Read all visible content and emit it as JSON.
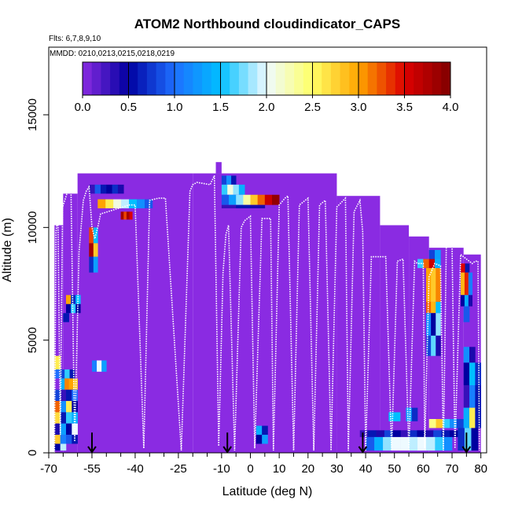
{
  "chart_data": {
    "type": "heatmap",
    "title": "ATOM2 Northbound cloudindicator_CAPS",
    "flights_label": "Flts: 6,7,8,9,10",
    "dates_label": "MMDD: 0210,0213,0215,0218,0219",
    "xlabel": "Latitude (deg N)",
    "ylabel": "Altitude (m)",
    "xlim": [
      -70,
      82
    ],
    "ylim": [
      0,
      18000
    ],
    "x_ticks": [
      -70,
      -55,
      -40,
      -25,
      -10,
      0,
      10,
      20,
      30,
      40,
      50,
      60,
      70,
      80
    ],
    "x_tick_labels": [
      "-70",
      "-55",
      "-40",
      "-25",
      "-10",
      "0",
      "10",
      "20",
      "30",
      "40",
      "50",
      "60",
      "70",
      "80"
    ],
    "x_minor_ticks": [
      -65,
      -60,
      -50,
      -45,
      -35,
      -30,
      -20,
      -15,
      -5,
      5,
      15,
      25,
      35,
      45,
      55,
      65,
      75
    ],
    "y_ticks": [
      0,
      5000,
      10000,
      15000
    ],
    "y_tick_labels": [
      "0",
      "5000",
      "10000",
      "15000"
    ],
    "colorbar": {
      "min": 0,
      "max": 4,
      "tick_values": [
        0,
        0.5,
        1,
        1.5,
        2,
        2.5,
        3,
        3.5,
        4
      ],
      "tick_labels": [
        "0.0",
        "0.5",
        "1.0",
        "1.5",
        "2.0",
        "2.5",
        "3.0",
        "3.5",
        "4.0"
      ],
      "stops": [
        {
          "v": 0.0,
          "c": "#8a2be2"
        },
        {
          "v": 0.5,
          "c": "#0000a0"
        },
        {
          "v": 1.0,
          "c": "#1e6fff"
        },
        {
          "v": 1.5,
          "c": "#00bfff"
        },
        {
          "v": 2.0,
          "c": "#eefaff"
        },
        {
          "v": 2.5,
          "c": "#ffff66"
        },
        {
          "v": 3.0,
          "c": "#ffa500"
        },
        {
          "v": 3.5,
          "c": "#dd0000"
        },
        {
          "v": 4.0,
          "c": "#800000"
        }
      ]
    },
    "background_blocks": [
      {
        "x0": -68,
        "x1": -65,
        "y0": 0,
        "y1": 10100,
        "v": 0
      },
      {
        "x0": -65,
        "x1": -60,
        "y0": 0,
        "y1": 11500,
        "v": 0
      },
      {
        "x0": -60,
        "x1": -20,
        "y0": 0,
        "y1": 12400,
        "v": 0
      },
      {
        "x0": -20,
        "x1": 30,
        "y0": 0,
        "y1": 12400,
        "v": 0
      },
      {
        "x0": 30,
        "x1": 45,
        "y0": 0,
        "y1": 11400,
        "v": 0
      },
      {
        "x0": 45,
        "x1": 55,
        "y0": 0,
        "y1": 10100,
        "v": 0
      },
      {
        "x0": 55,
        "x1": 62,
        "y0": 0,
        "y1": 9600,
        "v": 0
      },
      {
        "x0": 62,
        "x1": 74,
        "y0": 0,
        "y1": 9100,
        "v": 0
      },
      {
        "x0": 74,
        "x1": 80,
        "y0": 0,
        "y1": 8800,
        "v": 0
      },
      {
        "x0": -12,
        "x1": -10,
        "y0": 12400,
        "y1": 12900,
        "v": 0
      }
    ],
    "cloud_cells": [
      {
        "x0": -56,
        "x1": -44,
        "y0": 11500,
        "y1": 11900,
        "vals": [
          0.3,
          0.9,
          0.6,
          0.5,
          0.7,
          0.4
        ]
      },
      {
        "x0": -53,
        "x1": -34,
        "y0": 10850,
        "y1": 11250,
        "vals": [
          3.0,
          2.6,
          2.1,
          1.9,
          1.5,
          1.2,
          0.9
        ]
      },
      {
        "x0": -45,
        "x1": -41,
        "y0": 10350,
        "y1": 10700,
        "vals": [
          3.8,
          3.3,
          3.8,
          3.5
        ]
      },
      {
        "x0": -10,
        "x1": -5,
        "y0": 11900,
        "y1": 12300,
        "vals": [
          0.8,
          1.2,
          0.6
        ]
      },
      {
        "x0": -10,
        "x1": -2,
        "y0": 11450,
        "y1": 11900,
        "vals": [
          1.6,
          2.1,
          1.8,
          1.4
        ]
      },
      {
        "x0": -10,
        "x1": 10,
        "y0": 11000,
        "y1": 11450,
        "vals": [
          0.9,
          1.3,
          1.8,
          2.3,
          2.8,
          3.2,
          3.6,
          3.9
        ]
      },
      {
        "x0": -10,
        "x1": 5,
        "y0": 10850,
        "y1": 11000,
        "vals": [
          0.3,
          0.6,
          0.4
        ]
      },
      {
        "x0": -56,
        "x1": -53,
        "y0": 9300,
        "y1": 10000,
        "vals": [
          3.3,
          1.5
        ]
      },
      {
        "x0": -56,
        "x1": -53,
        "y0": 8700,
        "y1": 9300,
        "vals": [
          3.8,
          2.8
        ]
      },
      {
        "x0": -56,
        "x1": -53,
        "y0": 8000,
        "y1": 8700,
        "vals": [
          0.7,
          1.3
        ]
      },
      {
        "x0": -64,
        "x1": -59,
        "y0": 6600,
        "y1": 7000,
        "vals": [
          3.0,
          0.7,
          1.5
        ]
      },
      {
        "x0": -64,
        "x1": -59,
        "y0": 6200,
        "y1": 6600,
        "vals": [
          0.5,
          1.6,
          0.5
        ]
      },
      {
        "x0": -65,
        "x1": -63,
        "y0": 5800,
        "y1": 6200,
        "vals": [
          0.6
        ]
      },
      {
        "x0": -68,
        "x1": -66,
        "y0": 3700,
        "y1": 4300,
        "vals": [
          2.6
        ]
      },
      {
        "x0": -68,
        "x1": -61,
        "y0": 3300,
        "y1": 3700,
        "vals": [
          1.0,
          0.8,
          1.6,
          0.6
        ]
      },
      {
        "x0": -66,
        "x1": -60,
        "y0": 2800,
        "y1": 3300,
        "vals": [
          1.4,
          3.1,
          3.0,
          2.8
        ]
      },
      {
        "x0": -68,
        "x1": -60,
        "y0": 2300,
        "y1": 2800,
        "vals": [
          0.8,
          0.3,
          0.6,
          1.0
        ]
      },
      {
        "x0": -68,
        "x1": -60,
        "y0": 1800,
        "y1": 2300,
        "vals": [
          3.2,
          1.2,
          2.6,
          0.5
        ]
      },
      {
        "x0": -68,
        "x1": -60,
        "y0": 1300,
        "y1": 1800,
        "vals": [
          2.7,
          0.6,
          1.6,
          1.4
        ]
      },
      {
        "x0": -68,
        "x1": -60,
        "y0": 800,
        "y1": 1300,
        "vals": [
          0.4,
          1.3,
          0.5,
          2.0
        ]
      },
      {
        "x0": -68,
        "x1": -60,
        "y0": 400,
        "y1": 800,
        "vals": [
          2.8,
          1.1,
          0.9,
          0.6
        ]
      },
      {
        "x0": -68,
        "x1": -64,
        "y0": 100,
        "y1": 400,
        "vals": [
          0.5,
          1.9
        ]
      },
      {
        "x0": -55,
        "x1": -50,
        "y0": 3600,
        "y1": 4100,
        "vals": [
          1.1,
          2.0,
          1.3
        ]
      },
      {
        "x0": 2,
        "x1": 6,
        "y0": 800,
        "y1": 1200,
        "vals": [
          1.4,
          0.6
        ]
      },
      {
        "x0": 2,
        "x1": 6,
        "y0": 400,
        "y1": 800,
        "vals": [
          0.5,
          1.3
        ]
      },
      {
        "x0": 38,
        "x1": 72,
        "y0": 700,
        "y1": 1000,
        "vals": [
          0.3,
          0.6,
          0.4,
          0.8,
          0.5,
          0.3,
          0.7,
          0.5,
          0.4,
          0.8,
          0.6,
          0.5
        ]
      },
      {
        "x0": 40,
        "x1": 70,
        "y0": 100,
        "y1": 700,
        "vals": [
          0.9,
          1.4,
          1.8,
          2.0,
          2.0,
          1.9,
          1.7,
          1.8,
          1.6,
          1.2
        ]
      },
      {
        "x0": 55,
        "x1": 64,
        "y0": 100,
        "y1": 700,
        "vals": [
          1.9,
          2.0,
          1.9
        ]
      },
      {
        "x0": 54,
        "x1": 58,
        "y0": 1400,
        "y1": 2000,
        "vals": [
          1.3,
          0.7
        ]
      },
      {
        "x0": 62,
        "x1": 74,
        "y0": 1100,
        "y1": 1500,
        "vals": [
          2.4,
          2.8,
          1.6,
          1.2,
          0.8
        ]
      },
      {
        "x0": 61,
        "x1": 66,
        "y0": 6700,
        "y1": 8200,
        "vals": [
          3.0,
          2.8,
          3.1
        ]
      },
      {
        "x0": 58,
        "x1": 66,
        "y0": 8200,
        "y1": 8600,
        "vals": [
          1.6,
          3.2,
          3.6,
          1.4
        ]
      },
      {
        "x0": 61,
        "x1": 66,
        "y0": 6200,
        "y1": 6700,
        "vals": [
          3.2,
          2.9,
          1.5
        ]
      },
      {
        "x0": 61,
        "x1": 66,
        "y0": 5200,
        "y1": 6200,
        "vals": [
          1.2,
          0.5,
          1.8
        ]
      },
      {
        "x0": 61,
        "x1": 66,
        "y0": 4300,
        "y1": 5200,
        "vals": [
          0.8,
          1.7,
          0.4
        ]
      },
      {
        "x0": 62,
        "x1": 66,
        "y0": 8600,
        "y1": 9000,
        "vals": [
          0.8,
          1.3
        ]
      },
      {
        "x0": 73,
        "x1": 76,
        "y0": 8000,
        "y1": 8400,
        "vals": [
          3.5,
          0.6
        ]
      },
      {
        "x0": 73,
        "x1": 77,
        "y0": 7000,
        "y1": 8000,
        "vals": [
          2.9,
          3.4,
          1.1
        ]
      },
      {
        "x0": 73,
        "x1": 77,
        "y0": 6500,
        "y1": 7000,
        "vals": [
          0.5,
          1.4,
          0.4
        ]
      },
      {
        "x0": 74,
        "x1": 76,
        "y0": 5800,
        "y1": 6500,
        "vals": [
          0.9
        ]
      },
      {
        "x0": 74,
        "x1": 78,
        "y0": 4000,
        "y1": 4700,
        "vals": [
          1.2,
          0.4
        ]
      },
      {
        "x0": 74,
        "x1": 80,
        "y0": 3000,
        "y1": 4000,
        "vals": [
          0.5,
          1.5,
          0.7
        ]
      },
      {
        "x0": 74,
        "x1": 80,
        "y0": 2000,
        "y1": 3000,
        "vals": [
          0.3,
          1.1,
          0.6
        ]
      },
      {
        "x0": 74,
        "x1": 80,
        "y0": 1100,
        "y1": 2000,
        "vals": [
          1.4,
          2.6,
          0.6
        ]
      },
      {
        "x0": 72,
        "x1": 79,
        "y0": 100,
        "y1": 1100,
        "vals": [
          0.7,
          1.7,
          0.5
        ]
      },
      {
        "x0": 48,
        "x1": 52,
        "y0": 1400,
        "y1": 1800,
        "vals": [
          1.5
        ]
      }
    ],
    "flight_track": [
      [
        -68,
        0
      ],
      [
        -67.5,
        9800
      ],
      [
        -66.8,
        10500
      ],
      [
        -66,
        800
      ],
      [
        -65.2,
        10900
      ],
      [
        -64.2,
        11300
      ],
      [
        -63.2,
        11700
      ],
      [
        -62.3,
        11900
      ],
      [
        -61,
        500
      ],
      [
        -59.5,
        8900
      ],
      [
        -58,
        11200
      ],
      [
        -57,
        11600
      ],
      [
        -56,
        11800
      ],
      [
        -55,
        10000
      ],
      [
        -54,
        9500
      ],
      [
        -53,
        10000
      ],
      [
        -52,
        10600
      ],
      [
        -47,
        10800
      ],
      [
        -42,
        11000
      ],
      [
        -40,
        11000
      ],
      [
        -37,
        200
      ],
      [
        -35,
        11200
      ],
      [
        -32,
        11300
      ],
      [
        -29.5,
        11300
      ],
      [
        -24,
        100
      ],
      [
        -21,
        11600
      ],
      [
        -20,
        11900
      ],
      [
        -18.5,
        12000
      ],
      [
        -14,
        11900
      ],
      [
        -12.5,
        12300
      ],
      [
        -11,
        300
      ],
      [
        -9.5,
        8000
      ],
      [
        -8.5,
        9700
      ],
      [
        -7.6,
        10100
      ],
      [
        -5.5,
        100
      ],
      [
        -3.2,
        10000
      ],
      [
        -2,
        10300
      ],
      [
        0,
        10500
      ],
      [
        1.5,
        200
      ],
      [
        4,
        10400
      ],
      [
        7,
        10400
      ],
      [
        8,
        100
      ],
      [
        10,
        11000
      ],
      [
        12,
        11300
      ],
      [
        13,
        11400
      ],
      [
        15,
        100
      ],
      [
        17,
        11000
      ],
      [
        20,
        11300
      ],
      [
        22,
        100
      ],
      [
        24,
        11000
      ],
      [
        26,
        11200
      ],
      [
        28,
        100
      ],
      [
        30,
        10900
      ],
      [
        33,
        11300
      ],
      [
        34,
        100
      ],
      [
        36,
        10700
      ],
      [
        38,
        11200
      ],
      [
        39,
        9800
      ],
      [
        40,
        100
      ],
      [
        42,
        8700
      ],
      [
        47,
        8700
      ],
      [
        49,
        100
      ],
      [
        51,
        8500
      ],
      [
        53,
        8600
      ],
      [
        55,
        100
      ],
      [
        57,
        8500
      ],
      [
        58,
        8400
      ],
      [
        60,
        8400
      ],
      [
        60.5,
        200
      ],
      [
        62,
        7800
      ],
      [
        64,
        8400
      ],
      [
        66,
        8300
      ],
      [
        67,
        100
      ],
      [
        68,
        9200
      ],
      [
        70,
        9200
      ],
      [
        71,
        200
      ],
      [
        73,
        8800
      ],
      [
        75,
        8600
      ],
      [
        76,
        8500
      ],
      [
        77,
        8400
      ],
      [
        78,
        8500
      ],
      [
        79,
        8500
      ],
      [
        79.5,
        100
      ]
    ],
    "markers": [
      {
        "lat": -55,
        "alt": 900
      },
      {
        "lat": -8,
        "alt": 900
      },
      {
        "lat": 39,
        "alt": 900
      },
      {
        "lat": 75,
        "alt": 900
      }
    ]
  }
}
